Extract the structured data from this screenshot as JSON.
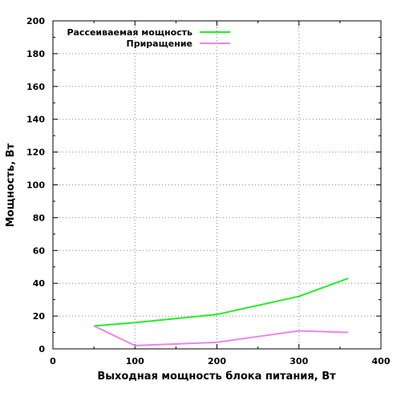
{
  "chart_data": {
    "type": "line",
    "xlabel": "Выходная мощность блока питания, Вт",
    "ylabel": "Мощность, Вт",
    "xlim": [
      0,
      400
    ],
    "ylim": [
      0,
      200
    ],
    "x_ticks": [
      0,
      100,
      200,
      300,
      400
    ],
    "y_ticks": [
      0,
      20,
      40,
      60,
      80,
      100,
      120,
      140,
      160,
      180,
      200
    ],
    "grid": true,
    "legend_position": "top-left",
    "series": [
      {
        "name": "Рассеиваемая мощность",
        "color": "#22ee22",
        "x": [
          50,
          100,
          200,
          300,
          360
        ],
        "y": [
          14,
          16,
          21,
          32,
          43
        ]
      },
      {
        "name": "Приращение",
        "color": "#ee82ee",
        "x": [
          50,
          100,
          200,
          300,
          360
        ],
        "y": [
          14,
          2,
          4,
          11,
          10
        ]
      }
    ]
  }
}
